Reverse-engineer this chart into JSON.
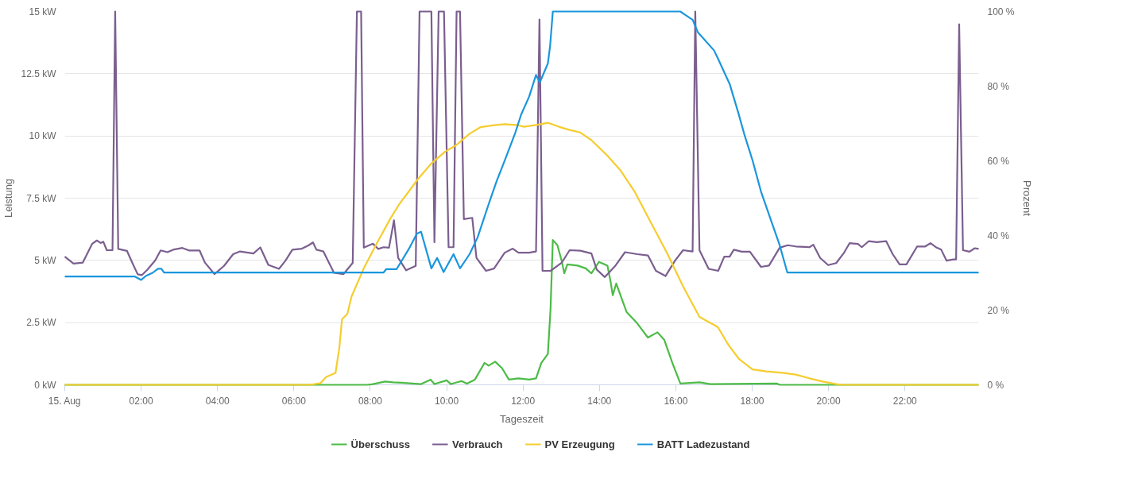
{
  "chart_data": {
    "type": "line",
    "xlabel": "Tageszeit",
    "ylabel": "Leistung",
    "y2label": "Prozent",
    "xlim": [
      0,
      23.93
    ],
    "ylim": [
      0,
      15
    ],
    "y2lim": [
      0,
      100
    ],
    "xticks": [
      {
        "value": 0,
        "label": "15. Aug"
      },
      {
        "value": 2,
        "label": "02:00"
      },
      {
        "value": 4,
        "label": "04:00"
      },
      {
        "value": 6,
        "label": "06:00"
      },
      {
        "value": 8,
        "label": "08:00"
      },
      {
        "value": 10,
        "label": "10:00"
      },
      {
        "value": 12,
        "label": "12:00"
      },
      {
        "value": 14,
        "label": "14:00"
      },
      {
        "value": 16,
        "label": "16:00"
      },
      {
        "value": 18,
        "label": "18:00"
      },
      {
        "value": 20,
        "label": "20:00"
      },
      {
        "value": 22,
        "label": "22:00"
      }
    ],
    "yticks": [
      {
        "value": 0,
        "label": "0 kW"
      },
      {
        "value": 2.5,
        "label": "2.5 kW"
      },
      {
        "value": 5,
        "label": "5 kW"
      },
      {
        "value": 7.5,
        "label": "7.5 kW"
      },
      {
        "value": 10,
        "label": "10 kW"
      },
      {
        "value": 12.5,
        "label": "12.5 kW"
      },
      {
        "value": 15,
        "label": "15 kW"
      }
    ],
    "y2ticks": [
      {
        "value": 0,
        "label": "0 %"
      },
      {
        "value": 20,
        "label": "20 %"
      },
      {
        "value": 40,
        "label": "40 %"
      },
      {
        "value": 60,
        "label": "60 %"
      },
      {
        "value": 80,
        "label": "80 %"
      },
      {
        "value": 100,
        "label": "100 %"
      }
    ],
    "grid": "y",
    "legend": "bottom",
    "marker": "none",
    "line_style": "solid",
    "series": [
      {
        "name": "Überschuss",
        "color": "#4cbb47",
        "x": [
          0,
          7.9,
          8.04,
          8.39,
          8.6,
          8.97,
          9.33,
          9.58,
          9.68,
          10.0,
          10.11,
          10.39,
          10.53,
          10.74,
          10.99,
          11.1,
          11.27,
          11.45,
          11.63,
          11.88,
          12.16,
          12.34,
          12.48,
          12.65,
          12.72,
          12.78,
          12.9,
          13.01,
          13.08,
          13.16,
          13.43,
          13.64,
          13.79,
          13.99,
          14.21,
          14.29,
          14.35,
          14.44,
          14.71,
          14.99,
          15.27,
          15.52,
          15.7,
          15.91,
          16.12,
          16.62,
          16.9,
          18.65,
          18.72,
          23.93
        ],
        "values": [
          0,
          0,
          0.02,
          0.13,
          0.1,
          0.07,
          0.03,
          0.21,
          0.03,
          0.18,
          0.03,
          0.15,
          0.05,
          0.21,
          0.88,
          0.77,
          0.93,
          0.67,
          0.21,
          0.26,
          0.21,
          0.26,
          0.88,
          1.24,
          3.04,
          5.82,
          5.61,
          4.99,
          4.48,
          4.84,
          4.79,
          4.68,
          4.48,
          4.94,
          4.79,
          4.17,
          3.6,
          4.07,
          2.93,
          2.47,
          1.9,
          2.11,
          1.8,
          0.88,
          0.05,
          0.1,
          0.03,
          0.05,
          0,
          0
        ]
      },
      {
        "name": "Verbrauch",
        "color": "#7b5f8f",
        "x": [
          0,
          0.23,
          0.47,
          0.72,
          0.84,
          0.94,
          1.01,
          1.1,
          1.25,
          1.32,
          1.4,
          1.63,
          1.77,
          1.91,
          2.02,
          2.16,
          2.37,
          2.51,
          2.69,
          2.86,
          3.08,
          3.25,
          3.53,
          3.67,
          3.92,
          4.17,
          4.41,
          4.59,
          4.94,
          5.12,
          5.33,
          5.61,
          5.78,
          5.96,
          6.21,
          6.38,
          6.5,
          6.59,
          6.77,
          7.05,
          7.3,
          7.54,
          7.65,
          7.76,
          7.83,
          8.07,
          8.21,
          8.35,
          8.49,
          8.62,
          8.73,
          8.94,
          9.19,
          9.29,
          9.47,
          9.6,
          9.68,
          9.79,
          9.93,
          10.05,
          10.18,
          10.26,
          10.35,
          10.45,
          10.67,
          10.78,
          11.03,
          11.24,
          11.52,
          11.73,
          11.88,
          12.16,
          12.34,
          12.43,
          12.51,
          12.72,
          13.01,
          13.22,
          13.5,
          13.79,
          13.93,
          14.14,
          14.42,
          14.67,
          14.99,
          15.27,
          15.48,
          15.73,
          15.98,
          16.19,
          16.44,
          16.51,
          16.62,
          16.86,
          17.11,
          17.27,
          17.41,
          17.52,
          17.73,
          17.94,
          18.23,
          18.44,
          18.72,
          18.93,
          19.14,
          19.5,
          19.6,
          19.78,
          19.99,
          20.2,
          20.41,
          20.55,
          20.77,
          20.87,
          21.05,
          21.26,
          21.51,
          21.68,
          21.86,
          22.04,
          22.32,
          22.53,
          22.67,
          22.81,
          22.95,
          23.09,
          23.27,
          23.34,
          23.42,
          23.52,
          23.69,
          23.83,
          23.93
        ],
        "values": [
          5.15,
          4.87,
          4.91,
          5.67,
          5.8,
          5.7,
          5.75,
          5.41,
          5.41,
          15,
          5.46,
          5.38,
          4.9,
          4.44,
          4.41,
          4.62,
          5.0,
          5.4,
          5.33,
          5.44,
          5.5,
          5.4,
          5.4,
          4.91,
          4.45,
          4.78,
          5.25,
          5.36,
          5.28,
          5.52,
          4.82,
          4.66,
          4.99,
          5.43,
          5.47,
          5.6,
          5.72,
          5.43,
          5.36,
          4.5,
          4.45,
          4.9,
          15,
          15,
          5.51,
          5.67,
          5.46,
          5.53,
          5.51,
          6.61,
          5.1,
          4.6,
          4.78,
          15,
          15,
          15,
          5.73,
          15,
          15,
          5.53,
          5.53,
          15,
          15,
          6.66,
          6.71,
          5.1,
          4.58,
          4.67,
          5.31,
          5.47,
          5.31,
          5.31,
          5.36,
          14.68,
          4.58,
          4.58,
          4.9,
          5.41,
          5.39,
          5.28,
          4.63,
          4.33,
          4.79,
          5.33,
          5.25,
          5.2,
          4.58,
          4.37,
          4.99,
          5.41,
          5.36,
          15,
          5.41,
          4.66,
          4.58,
          5.15,
          5.15,
          5.43,
          5.35,
          5.35,
          4.74,
          4.79,
          5.51,
          5.61,
          5.56,
          5.53,
          5.63,
          5.1,
          4.81,
          4.89,
          5.32,
          5.69,
          5.66,
          5.53,
          5.77,
          5.73,
          5.77,
          5.25,
          4.84,
          4.84,
          5.56,
          5.56,
          5.69,
          5.53,
          5.43,
          4.99,
          5.04,
          5.04,
          14.49,
          5.41,
          5.35,
          5.49,
          5.46
        ]
      },
      {
        "name": "PV Erzeugung",
        "color": "#f5cd2f",
        "x": [
          0,
          6.42,
          6.7,
          6.84,
          7.09,
          7.19,
          7.26,
          7.4,
          7.51,
          7.83,
          8.18,
          8.53,
          8.76,
          9.26,
          9.61,
          9.96,
          10.25,
          10.6,
          10.88,
          11.24,
          11.52,
          11.88,
          12.02,
          12.37,
          12.65,
          12.94,
          13.22,
          13.5,
          13.79,
          14.21,
          14.56,
          14.92,
          15.34,
          15.77,
          16.19,
          16.62,
          17.1,
          17.38,
          17.66,
          18.01,
          18.37,
          18.79,
          19.14,
          19.5,
          19.85,
          20.2,
          20.34,
          23.93
        ],
        "values": [
          0,
          0,
          0.07,
          0.31,
          0.48,
          1.49,
          2.63,
          2.85,
          3.55,
          4.68,
          5.71,
          6.69,
          7.26,
          8.29,
          8.91,
          9.37,
          9.63,
          10.09,
          10.35,
          10.43,
          10.47,
          10.43,
          10.37,
          10.45,
          10.53,
          10.37,
          10.24,
          10.14,
          9.83,
          9.21,
          8.6,
          7.77,
          6.54,
          5.3,
          3.96,
          2.73,
          2.32,
          1.6,
          1.03,
          0.62,
          0.54,
          0.48,
          0.41,
          0.26,
          0.13,
          0.03,
          0,
          0
        ]
      },
      {
        "name": "BATT Ladezustand",
        "color": "#1a96dd",
        "axis": "y2",
        "x": [
          0,
          1.84,
          2.0,
          2.13,
          2.3,
          2.44,
          2.53,
          2.6,
          8.35,
          8.42,
          8.69,
          9.01,
          9.22,
          9.33,
          9.6,
          9.75,
          9.92,
          10.18,
          10.35,
          10.6,
          10.81,
          11.1,
          11.31,
          11.52,
          11.8,
          11.95,
          12.16,
          12.34,
          12.44,
          12.65,
          12.71,
          12.78,
          16.12,
          16.26,
          16.44,
          16.58,
          17.0,
          17.1,
          17.41,
          17.63,
          17.8,
          18.01,
          18.23,
          18.44,
          18.72,
          18.92,
          23.93
        ],
        "values": [
          29.0,
          29.0,
          28.1,
          29.2,
          30.0,
          31.1,
          31.1,
          30.1,
          30.1,
          31.0,
          31.0,
          36.4,
          40.5,
          41.0,
          31.2,
          34.0,
          30.2,
          35.0,
          31.2,
          35.0,
          39.5,
          48.4,
          54.6,
          60.1,
          67.6,
          72.4,
          77.2,
          83.0,
          81.0,
          86.1,
          90.9,
          100,
          100,
          99.0,
          97.8,
          94.4,
          89.6,
          87.5,
          80.6,
          73.1,
          66.9,
          60.1,
          51.8,
          45.6,
          37.4,
          30.1,
          30.1
        ]
      }
    ]
  }
}
